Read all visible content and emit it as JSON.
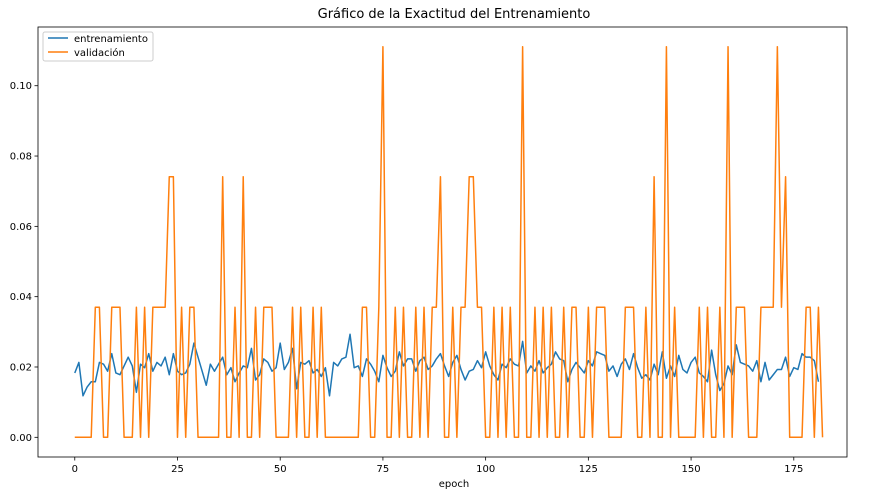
{
  "chart_data": {
    "type": "line",
    "title": "Gráfico de la Exactitud del Entrenamiento",
    "xlabel": "epoch",
    "ylabel": "",
    "xlim": [
      -8.95,
      187.95
    ],
    "ylim": [
      -0.0056,
      0.1167
    ],
    "xticks": [
      0,
      25,
      50,
      75,
      100,
      125,
      150,
      175
    ],
    "yticks": [
      0.0,
      0.02,
      0.04,
      0.06,
      0.08,
      0.1
    ],
    "ytick_labels": [
      "0.00",
      "0.02",
      "0.04",
      "0.06",
      "0.08",
      "0.10"
    ],
    "grid": false,
    "legend_position": "upper-left",
    "series": [
      {
        "name": "entrenamiento",
        "color": "#1f77b4",
        "values": [
          0.0183,
          0.0213,
          0.0118,
          0.0143,
          0.0158,
          0.0158,
          0.0213,
          0.0208,
          0.0188,
          0.0238,
          0.0183,
          0.0178,
          0.0203,
          0.0228,
          0.0203,
          0.0128,
          0.0208,
          0.0198,
          0.0238,
          0.0188,
          0.0213,
          0.0203,
          0.0228,
          0.0178,
          0.0238,
          0.0188,
          0.0178,
          0.0183,
          0.0208,
          0.0268,
          0.0228,
          0.0188,
          0.0148,
          0.0208,
          0.0188,
          0.0208,
          0.0228,
          0.0178,
          0.0198,
          0.0158,
          0.0183,
          0.0203,
          0.0198,
          0.0253,
          0.0163,
          0.0178,
          0.0223,
          0.0213,
          0.0188,
          0.0198,
          0.0268,
          0.0193,
          0.0213,
          0.0253,
          0.0138,
          0.0213,
          0.0208,
          0.0218,
          0.0183,
          0.0193,
          0.0173,
          0.0198,
          0.0118,
          0.0213,
          0.0203,
          0.0223,
          0.0228,
          0.0293,
          0.0198,
          0.0203,
          0.0173,
          0.0223,
          0.0208,
          0.0188,
          0.0158,
          0.0233,
          0.0198,
          0.0173,
          0.0188,
          0.0243,
          0.0203,
          0.0223,
          0.0223,
          0.0188,
          0.0218,
          0.0228,
          0.0193,
          0.0203,
          0.0223,
          0.0238,
          0.0203,
          0.0173,
          0.0213,
          0.0233,
          0.0193,
          0.0163,
          0.0188,
          0.0193,
          0.0218,
          0.0198,
          0.0243,
          0.0203,
          0.0178,
          0.0163,
          0.0208,
          0.0198,
          0.0223,
          0.0208,
          0.0203,
          0.0273,
          0.0183,
          0.0203,
          0.0188,
          0.0218,
          0.0183,
          0.0198,
          0.0208,
          0.0243,
          0.0223,
          0.0218,
          0.0158,
          0.0193,
          0.0213,
          0.0198,
          0.0183,
          0.0218,
          0.0203,
          0.0243,
          0.0238,
          0.0233,
          0.0188,
          0.0203,
          0.0173,
          0.0208,
          0.0223,
          0.0193,
          0.0238,
          0.0198,
          0.0168,
          0.0178,
          0.0163,
          0.0208,
          0.0178,
          0.0243,
          0.0168,
          0.0203,
          0.0173,
          0.0233,
          0.0193,
          0.0183,
          0.0213,
          0.0228,
          0.0183,
          0.0173,
          0.0158,
          0.0248,
          0.0178,
          0.0133,
          0.0153,
          0.0203,
          0.0178,
          0.0263,
          0.0213,
          0.0208,
          0.0203,
          0.0188,
          0.0218,
          0.0158,
          0.0213,
          0.0163,
          0.0178,
          0.0193,
          0.0193,
          0.0228,
          0.0173,
          0.0198,
          0.0193,
          0.0238,
          0.0228,
          0.0228,
          0.0218,
          0.0158
        ]
      },
      {
        "name": "validación",
        "color": "#ff7f0e",
        "values": [
          0,
          0,
          0,
          0,
          0,
          0.037,
          0.037,
          0,
          0,
          0.037,
          0.037,
          0.037,
          0,
          0,
          0,
          0.037,
          0,
          0.037,
          0,
          0.037,
          0.037,
          0.037,
          0.037,
          0.0741,
          0.0741,
          0,
          0.037,
          0,
          0.037,
          0.037,
          0,
          0,
          0,
          0,
          0,
          0,
          0.0741,
          0,
          0,
          0.037,
          0,
          0.0741,
          0,
          0,
          0.037,
          0,
          0.037,
          0.037,
          0.037,
          0,
          0,
          0,
          0,
          0.037,
          0,
          0.037,
          0,
          0,
          0.037,
          0,
          0.037,
          0,
          0,
          0,
          0,
          0,
          0,
          0,
          0,
          0,
          0.037,
          0.037,
          0,
          0,
          0.037,
          0.1111,
          0,
          0,
          0.037,
          0,
          0.037,
          0,
          0,
          0.037,
          0,
          0.037,
          0,
          0.037,
          0.037,
          0.0741,
          0,
          0,
          0.037,
          0,
          0.037,
          0.037,
          0.0741,
          0.0741,
          0.037,
          0.037,
          0,
          0,
          0.037,
          0,
          0.037,
          0,
          0.037,
          0,
          0,
          0.1111,
          0,
          0,
          0.037,
          0,
          0.037,
          0,
          0.037,
          0,
          0,
          0.037,
          0,
          0.037,
          0.037,
          0,
          0,
          0.037,
          0,
          0.037,
          0.037,
          0.037,
          0,
          0,
          0,
          0,
          0.037,
          0.037,
          0.037,
          0,
          0,
          0.037,
          0,
          0.0741,
          0,
          0,
          0.1111,
          0,
          0.037,
          0,
          0,
          0,
          0,
          0,
          0.037,
          0,
          0.037,
          0,
          0,
          0.037,
          0,
          0.1111,
          0,
          0.037,
          0.037,
          0.037,
          0,
          0,
          0,
          0.037,
          0.037,
          0.037,
          0.037,
          0.1111,
          0.037,
          0.0741,
          0,
          0,
          0,
          0,
          0.037,
          0.037,
          0,
          0.037,
          0
        ]
      }
    ]
  }
}
